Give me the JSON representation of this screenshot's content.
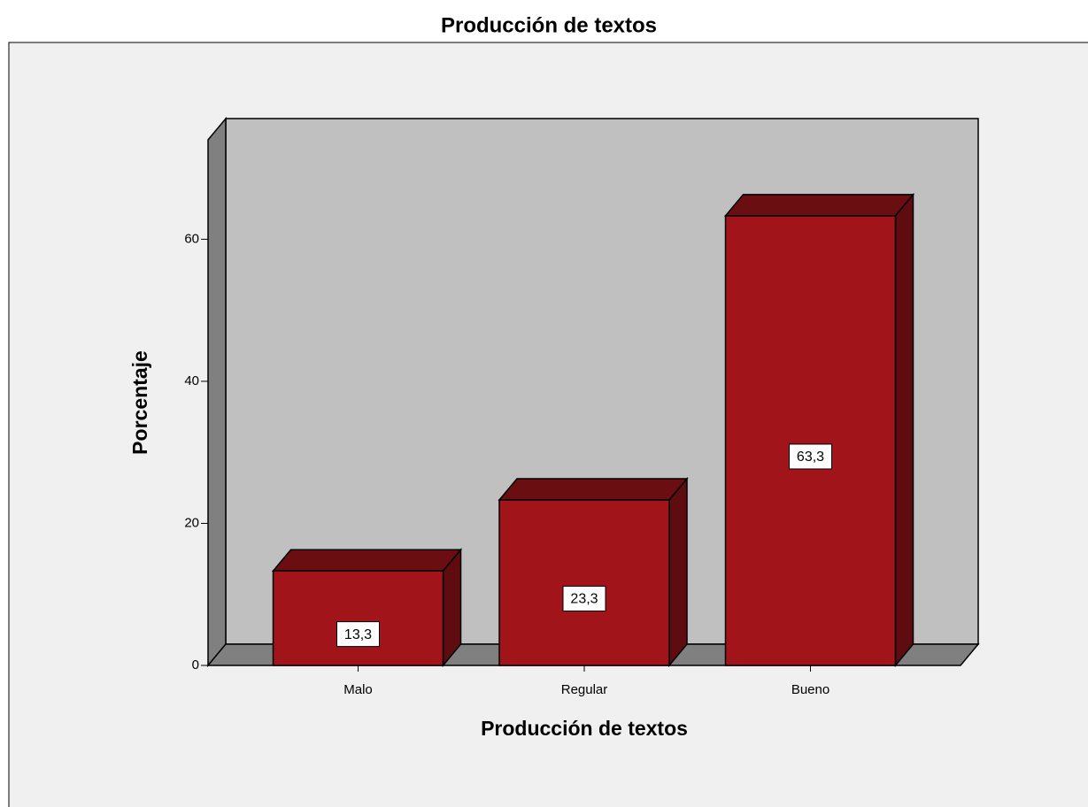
{
  "chart_data": {
    "type": "bar",
    "title": "Producción de textos",
    "x_label": "Producción de textos",
    "y_label": "Porcentaje",
    "categories": [
      "Malo",
      "Regular",
      "Bueno"
    ],
    "values": [
      13.3,
      23.3,
      63.3
    ],
    "value_labels": [
      "13,3",
      "23,3",
      "63,3"
    ],
    "color": "#a0141a",
    "ylim": [
      0,
      74
    ],
    "yticks": [
      0,
      20,
      40,
      60
    ],
    "grid": false
  }
}
